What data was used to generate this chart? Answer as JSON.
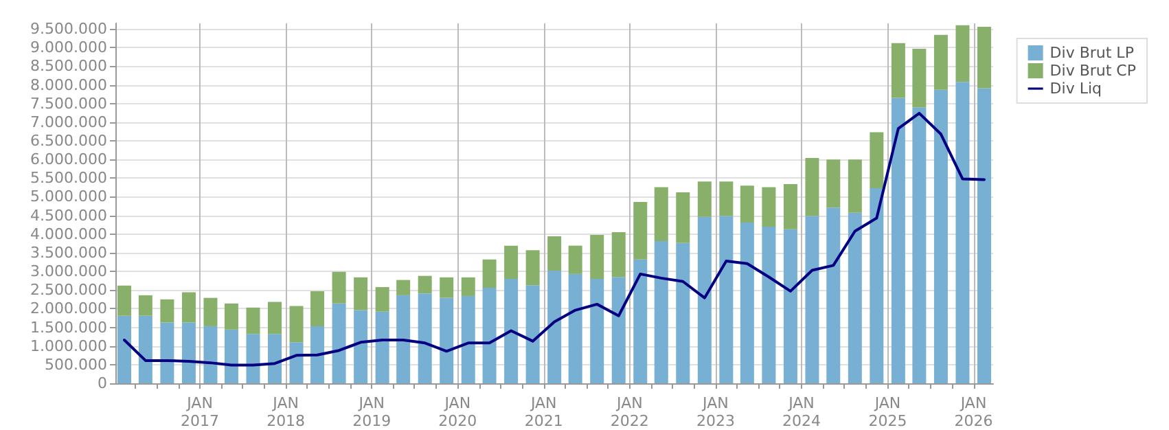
{
  "chart_data": {
    "type": "bar",
    "stacked": true,
    "x": [
      "2016-02-15",
      "2016-05-15",
      "2016-08-15",
      "2016-11-15",
      "2017-02-15",
      "2017-05-15",
      "2017-08-15",
      "2017-11-15",
      "2018-02-15",
      "2018-05-15",
      "2018-08-15",
      "2018-11-15",
      "2019-02-15",
      "2019-05-15",
      "2019-08-15",
      "2019-11-15",
      "2020-02-15",
      "2020-05-15",
      "2020-08-15",
      "2020-11-15",
      "2021-02-15",
      "2021-05-15",
      "2021-08-15",
      "2021-11-15",
      "2022-02-15",
      "2022-05-15",
      "2022-08-15",
      "2022-11-15",
      "2023-02-15",
      "2023-05-15",
      "2023-08-15",
      "2023-11-15",
      "2024-02-15",
      "2024-05-15",
      "2024-08-15",
      "2024-11-15",
      "2025-02-15",
      "2025-05-15",
      "2025-08-15",
      "2025-11-15",
      "2026-02-15"
    ],
    "series": [
      {
        "name": "Div Brut LP",
        "color": "#78b0d3",
        "values": [
          1810000,
          1810000,
          1630000,
          1630000,
          1530000,
          1440000,
          1320000,
          1320000,
          1100000,
          1530000,
          2140000,
          1960000,
          1920000,
          2360000,
          2410000,
          2290000,
          2340000,
          2560000,
          2800000,
          2630000,
          3020000,
          2930000,
          2800000,
          2850000,
          3320000,
          3810000,
          3760000,
          4460000,
          4490000,
          4310000,
          4200000,
          4130000,
          4490000,
          4710000,
          4570000,
          5230000,
          7650000,
          7400000,
          7870000,
          8080000,
          7910000
        ]
      },
      {
        "name": "Div Brut CP",
        "color": "#88b06a",
        "values": [
          810000,
          550000,
          620000,
          810000,
          760000,
          700000,
          710000,
          860000,
          970000,
          940000,
          850000,
          880000,
          660000,
          410000,
          470000,
          550000,
          500000,
          760000,
          890000,
          940000,
          920000,
          760000,
          1180000,
          1200000,
          1540000,
          1450000,
          1360000,
          950000,
          920000,
          990000,
          1060000,
          1210000,
          1550000,
          1290000,
          1430000,
          1500000,
          1470000,
          1570000,
          1470000,
          1520000,
          1650000
        ]
      },
      {
        "name": "Div Liq",
        "type": "line",
        "color": "#000080",
        "line_style": "solid",
        "marker": "none",
        "values": [
          1160000,
          610000,
          610000,
          590000,
          550000,
          490000,
          490000,
          530000,
          750000,
          760000,
          880000,
          1100000,
          1160000,
          1160000,
          1080000,
          860000,
          1080000,
          1080000,
          1410000,
          1130000,
          1650000,
          1960000,
          2120000,
          1810000,
          2930000,
          2820000,
          2730000,
          2290000,
          3280000,
          3210000,
          2850000,
          2470000,
          3030000,
          3160000,
          4080000,
          4430000,
          6830000,
          7240000,
          6680000,
          5480000,
          5460000
        ]
      }
    ],
    "xlim": [
      "2016-01-08",
      "2026-03-25"
    ],
    "xticks": [
      {
        "value": "2016-04-01",
        "label": null
      },
      {
        "value": "2016-07-01",
        "label": null
      },
      {
        "value": "2016-10-01",
        "label": null
      },
      {
        "value": "2017-01-01",
        "label": "JAN\n2017"
      },
      {
        "value": "2017-04-01",
        "label": null
      },
      {
        "value": "2017-07-01",
        "label": null
      },
      {
        "value": "2017-10-01",
        "label": null
      },
      {
        "value": "2018-01-01",
        "label": "JAN\n2018"
      },
      {
        "value": "2018-04-01",
        "label": null
      },
      {
        "value": "2018-07-01",
        "label": null
      },
      {
        "value": "2018-10-01",
        "label": null
      },
      {
        "value": "2019-01-01",
        "label": "JAN\n2019"
      },
      {
        "value": "2019-04-01",
        "label": null
      },
      {
        "value": "2019-07-01",
        "label": null
      },
      {
        "value": "2019-10-01",
        "label": null
      },
      {
        "value": "2020-01-01",
        "label": "JAN\n2020"
      },
      {
        "value": "2020-04-01",
        "label": null
      },
      {
        "value": "2020-07-01",
        "label": null
      },
      {
        "value": "2020-10-01",
        "label": null
      },
      {
        "value": "2021-01-01",
        "label": "JAN\n2021"
      },
      {
        "value": "2021-04-01",
        "label": null
      },
      {
        "value": "2021-07-01",
        "label": null
      },
      {
        "value": "2021-10-01",
        "label": null
      },
      {
        "value": "2022-01-01",
        "label": "JAN\n2022"
      },
      {
        "value": "2022-04-01",
        "label": null
      },
      {
        "value": "2022-07-01",
        "label": null
      },
      {
        "value": "2022-10-01",
        "label": null
      },
      {
        "value": "2023-01-01",
        "label": "JAN\n2023"
      },
      {
        "value": "2023-04-01",
        "label": null
      },
      {
        "value": "2023-07-01",
        "label": null
      },
      {
        "value": "2023-10-01",
        "label": null
      },
      {
        "value": "2024-01-01",
        "label": "JAN\n2024"
      },
      {
        "value": "2024-04-01",
        "label": null
      },
      {
        "value": "2024-07-01",
        "label": null
      },
      {
        "value": "2024-10-01",
        "label": null
      },
      {
        "value": "2025-01-01",
        "label": "JAN\n2025"
      },
      {
        "value": "2025-04-01",
        "label": null
      },
      {
        "value": "2025-07-01",
        "label": null
      },
      {
        "value": "2025-10-01",
        "label": null
      },
      {
        "value": "2026-01-01",
        "label": "JAN\n2026"
      }
    ],
    "ylim": [
      0,
      9650000
    ],
    "yticks": [
      {
        "value": 0,
        "label": "0"
      },
      {
        "value": 500000,
        "label": "500.000"
      },
      {
        "value": 1000000,
        "label": "1.000.000"
      },
      {
        "value": 1500000,
        "label": "1.500.000"
      },
      {
        "value": 2000000,
        "label": "2.000.000"
      },
      {
        "value": 2500000,
        "label": "2.500.000"
      },
      {
        "value": 3000000,
        "label": "3.000.000"
      },
      {
        "value": 3500000,
        "label": "3.500.000"
      },
      {
        "value": 4000000,
        "label": "4.000.000"
      },
      {
        "value": 4500000,
        "label": "4.500.000"
      },
      {
        "value": 5000000,
        "label": "5.000.000"
      },
      {
        "value": 5500000,
        "label": "5.500.000"
      },
      {
        "value": 6000000,
        "label": "6.000.000"
      },
      {
        "value": 6500000,
        "label": "6.500.000"
      },
      {
        "value": 7000000,
        "label": "7.000.000"
      },
      {
        "value": 7500000,
        "label": "7.500.000"
      },
      {
        "value": 8000000,
        "label": "8.000.000"
      },
      {
        "value": 8500000,
        "label": "8.500.000"
      },
      {
        "value": 9000000,
        "label": "9.000.000"
      },
      {
        "value": 9500000,
        "label": "9.500.000"
      }
    ],
    "grid": true,
    "legend": "top right"
  }
}
